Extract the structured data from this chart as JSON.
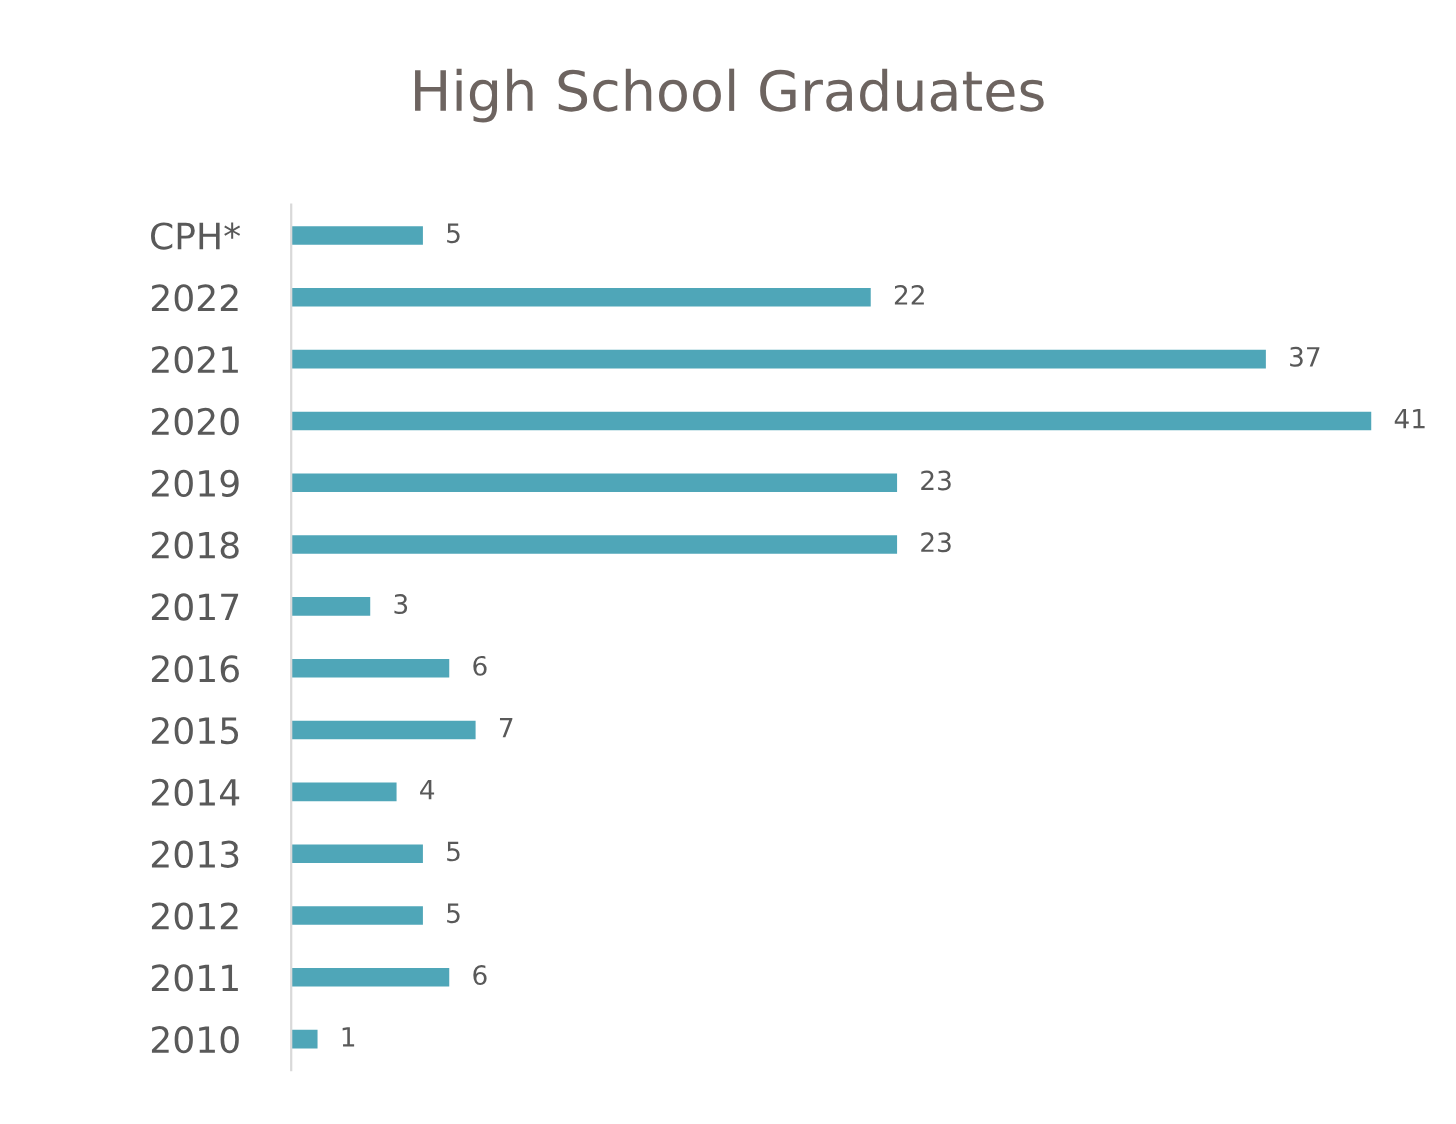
{
  "chart_data": {
    "type": "bar",
    "title": "High School Graduates",
    "orientation": "horizontal",
    "categories": [
      "CPH*",
      "2022",
      "2021",
      "2020",
      "2019",
      "2018",
      "2017",
      "2016",
      "2015",
      "2014",
      "2013",
      "2012",
      "2011",
      "2010"
    ],
    "values": [
      5,
      22,
      37,
      41,
      23,
      23,
      3,
      6,
      7,
      4,
      5,
      5,
      6,
      1
    ],
    "color": "#4fa6b8",
    "data_labels": true,
    "grid": false,
    "legend": false
  }
}
